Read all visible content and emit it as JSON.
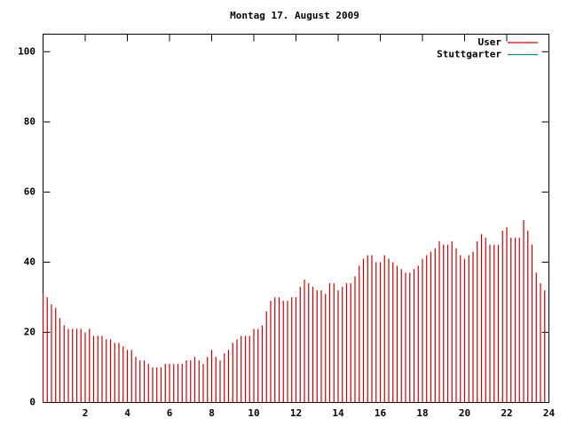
{
  "chart_data": {
    "type": "impulses",
    "title": "Montag 17. August 2009",
    "xlim": [
      0,
      24
    ],
    "xticks": [
      2,
      4,
      6,
      8,
      10,
      12,
      14,
      16,
      18,
      20,
      22,
      24
    ],
    "ylim": [
      0,
      105
    ],
    "yticks": [
      0,
      20,
      40,
      60,
      80,
      100
    ],
    "legend": "top-right",
    "x": [
      0,
      0.2,
      0.4,
      0.6,
      0.8,
      1,
      1.2,
      1.4,
      1.6,
      1.8,
      2,
      2.2,
      2.4,
      2.6,
      2.8,
      3,
      3.2,
      3.4,
      3.6,
      3.8,
      4,
      4.2,
      4.4,
      4.6,
      4.8,
      5,
      5.2,
      5.4,
      5.6,
      5.8,
      6,
      6.2,
      6.4,
      6.6,
      6.8,
      7,
      7.2,
      7.4,
      7.6,
      7.8,
      8,
      8.2,
      8.4,
      8.6,
      8.8,
      9,
      9.2,
      9.4,
      9.6,
      9.8,
      10,
      10.2,
      10.4,
      10.6,
      10.8,
      11,
      11.2,
      11.4,
      11.6,
      11.8,
      12,
      12.2,
      12.4,
      12.6,
      12.8,
      13,
      13.2,
      13.4,
      13.6,
      13.8,
      14,
      14.2,
      14.4,
      14.6,
      14.8,
      15,
      15.2,
      15.4,
      15.6,
      15.8,
      16,
      16.2,
      16.4,
      16.6,
      16.8,
      17,
      17.2,
      17.4,
      17.6,
      17.8,
      18,
      18.2,
      18.4,
      18.6,
      18.8,
      19,
      19.2,
      19.4,
      19.6,
      19.8,
      20,
      20.2,
      20.4,
      20.6,
      20.8,
      21,
      21.2,
      21.4,
      21.6,
      21.8,
      22,
      22.2,
      22.4,
      22.6,
      22.8,
      23,
      23.2,
      23.4,
      23.6,
      23.8
    ],
    "series": [
      {
        "name": "User",
        "color": "#cc0000",
        "values": [
          31,
          30,
          28,
          27,
          24,
          22,
          21,
          21,
          21,
          21,
          20,
          21,
          19,
          19,
          19,
          18,
          18,
          17,
          17,
          16,
          15,
          15,
          13,
          12,
          12,
          11,
          10,
          10,
          10,
          11,
          11,
          11,
          11,
          11,
          12,
          12,
          13,
          12,
          11,
          13,
          15,
          13,
          12,
          14,
          15,
          17,
          18,
          19,
          19,
          19,
          21,
          21,
          22,
          26,
          29,
          30,
          30,
          29,
          29,
          30,
          30,
          33,
          35,
          34,
          33,
          32,
          32,
          31,
          34,
          34,
          32,
          33,
          34,
          34,
          36,
          39,
          41,
          42,
          42,
          40,
          40,
          42,
          41,
          40,
          39,
          38,
          37,
          37,
          38,
          39,
          41,
          42,
          43,
          44,
          46,
          45,
          45,
          46,
          44,
          42,
          41,
          42,
          43,
          46,
          48,
          47,
          45,
          45,
          45,
          49,
          50,
          47,
          47,
          47,
          52,
          49,
          45,
          37,
          34,
          32
        ]
      },
      {
        "name": "Stuttgarter",
        "color": "#008b8b"
      }
    ]
  }
}
